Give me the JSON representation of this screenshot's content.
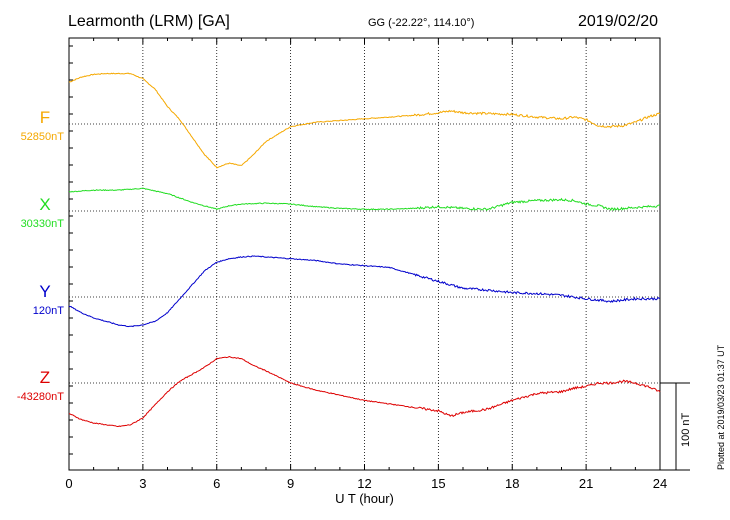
{
  "header": {
    "station": "Learmonth (LRM)  [GA]",
    "coords": "GG (-22.22°, 114.10°)",
    "date": "2019/02/20"
  },
  "plotted_note": "Plotted at 2019/03/23 01:37 UT",
  "chart_data": {
    "type": "line",
    "xlabel": "U T (hour)",
    "xlim": [
      0,
      24
    ],
    "xticks": [
      "0",
      "3",
      "6",
      "9",
      "12",
      "15",
      "18",
      "21",
      "24"
    ],
    "scale_bar": {
      "label": "100 nT",
      "value": 100
    },
    "series": [
      {
        "name": "F",
        "baseline_label": "52850nT",
        "color": "#f5a800",
        "x": [
          0,
          0.5,
          1,
          1.5,
          2,
          2.5,
          3,
          3.5,
          4,
          4.5,
          5,
          5.5,
          6,
          6.5,
          7,
          7.5,
          8,
          9,
          10,
          11,
          12,
          13,
          14,
          15,
          15.5,
          16,
          17,
          18,
          19,
          20,
          20.5,
          21,
          21.5,
          22,
          22.5,
          23,
          23.5,
          24
        ],
        "y": [
          48,
          54,
          57,
          58,
          58,
          58,
          52,
          40,
          20,
          5,
          -15,
          -35,
          -50,
          -45,
          -48,
          -35,
          -20,
          -3,
          2,
          4,
          6,
          8,
          10,
          13,
          15,
          13,
          12,
          11,
          8,
          6,
          8,
          5,
          -2,
          -3,
          -2,
          2,
          8,
          12
        ]
      },
      {
        "name": "X",
        "baseline_label": "30330nT",
        "color": "#22dd22",
        "x": [
          0,
          1,
          2,
          3,
          4,
          5,
          6,
          6.5,
          7,
          8,
          9,
          10,
          11,
          12,
          13,
          14,
          15,
          16,
          17,
          18,
          19,
          20,
          20.5,
          21,
          21.5,
          22,
          23,
          24
        ],
        "y": [
          22,
          24,
          24,
          26,
          20,
          10,
          2,
          6,
          8,
          9,
          8,
          5,
          3,
          2,
          2,
          3,
          5,
          3,
          2,
          10,
          12,
          13,
          12,
          8,
          6,
          2,
          4,
          6
        ]
      },
      {
        "name": "Y",
        "baseline_label": "120nT",
        "color": "#0000cc",
        "x": [
          0,
          0.5,
          1,
          1.5,
          2,
          2.5,
          3,
          3.5,
          4,
          4.5,
          5,
          5.5,
          6,
          6.5,
          7,
          7.5,
          8,
          9,
          10,
          11,
          12,
          13,
          14,
          15,
          16,
          17,
          18,
          19,
          20,
          21,
          22,
          23,
          24
        ],
        "y": [
          -10,
          -18,
          -24,
          -28,
          -32,
          -34,
          -32,
          -28,
          -18,
          -2,
          14,
          30,
          40,
          44,
          46,
          47,
          46,
          44,
          42,
          38,
          36,
          34,
          26,
          18,
          10,
          8,
          5,
          4,
          2,
          -2,
          -5,
          -2,
          -2
        ]
      },
      {
        "name": "Z",
        "baseline_label": "-43280nT",
        "color": "#dd0000",
        "x": [
          0,
          0.5,
          1,
          1.5,
          2,
          2.5,
          3,
          3.5,
          4,
          4.5,
          5,
          5.5,
          6,
          6.5,
          7,
          7.5,
          8,
          9,
          10,
          11,
          12,
          13,
          14,
          15,
          15.5,
          16,
          17,
          18,
          19,
          20,
          20.5,
          21,
          21.5,
          22,
          22.5,
          23,
          23.5,
          24
        ],
        "y": [
          -35,
          -42,
          -46,
          -48,
          -50,
          -48,
          -40,
          -25,
          -10,
          2,
          10,
          18,
          28,
          30,
          28,
          20,
          14,
          0,
          -8,
          -14,
          -20,
          -24,
          -28,
          -32,
          -38,
          -34,
          -30,
          -20,
          -12,
          -10,
          -6,
          -4,
          0,
          0,
          2,
          0,
          -4,
          -10
        ]
      }
    ]
  }
}
